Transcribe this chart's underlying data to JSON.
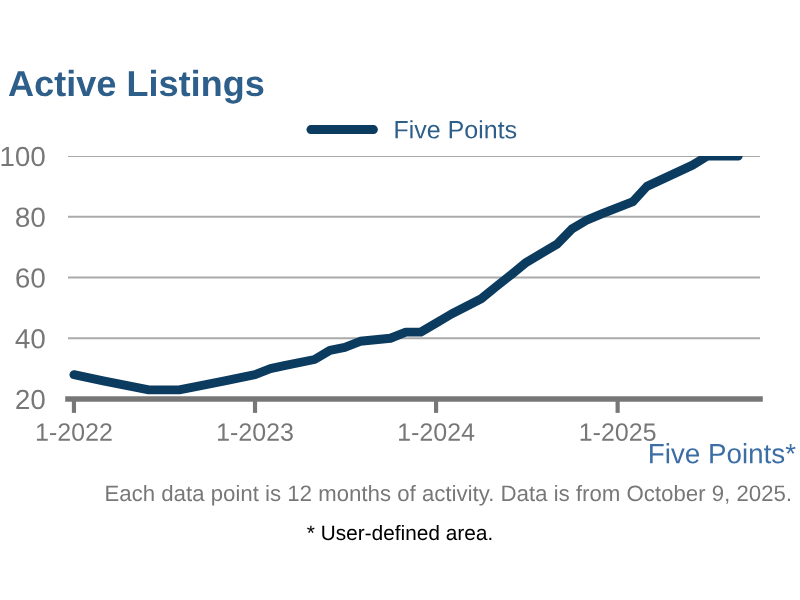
{
  "chart_data": {
    "type": "line",
    "title": "Active Listings",
    "x": [
      "2022-01",
      "2022-03",
      "2022-06",
      "2022-08",
      "2022-09",
      "2022-11",
      "2023-01",
      "2023-02",
      "2023-03",
      "2023-05",
      "2023-06",
      "2023-07",
      "2023-08",
      "2023-10",
      "2023-11",
      "2023-12",
      "2024-01",
      "2024-02",
      "2024-04",
      "2024-05",
      "2024-06",
      "2024-07",
      "2024-09",
      "2024-10",
      "2024-11",
      "2024-12",
      "2025-02",
      "2025-03",
      "2025-06",
      "2025-07",
      "2025-09"
    ],
    "series": [
      {
        "name": "Five Points",
        "color": "#0b3b5f",
        "values": [
          28,
          26,
          23,
          23,
          24,
          26,
          28,
          30,
          31,
          33,
          36,
          37,
          39,
          40,
          42,
          42,
          45,
          48,
          53,
          57,
          61,
          65,
          71,
          76,
          79,
          81,
          85,
          90,
          97,
          100,
          100
        ]
      }
    ],
    "xlim": [
      "2021-12-20",
      "2025-10-15"
    ],
    "xticks": [
      {
        "value": "2022-01",
        "label": "1-2022"
      },
      {
        "value": "2023-01",
        "label": "1-2023"
      },
      {
        "value": "2024-01",
        "label": "1-2024"
      },
      {
        "value": "2025-01",
        "label": "1-2025"
      }
    ],
    "ylim": [
      20,
      100
    ],
    "yticks": [
      20,
      40,
      60,
      80,
      100
    ],
    "grid": "y",
    "legend": "top",
    "marker": "none",
    "line_style": "solid",
    "annotations": [
      "Five Points*",
      "Each data point is 12 months of activity. Data is from October 9, 2025.",
      "* User-defined area."
    ]
  }
}
